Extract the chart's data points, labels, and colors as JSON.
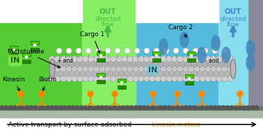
{
  "bg_color": "#ffffff",
  "green_main_color": "#55cc33",
  "green_outlet_color": "#88ee66",
  "blue_main_color": "#55bbdd",
  "blue_outlet_color": "#88ddee",
  "gray_wall_color": "#888899",
  "bottom_surface_color": "#99aa99",
  "bottom_dark_color": "#555555",
  "text_bottom_normal": "Active transport by surface adsorbed ",
  "text_bottom_orange": "kinesin motors",
  "text_orange_color": "#ff8800",
  "text_bottom_color": "#111111",
  "label_cargo1": "Cargo 1",
  "label_cargo2": "Cargo 2",
  "label_microtubule": "Microtubule",
  "label_kinesin": "Kinesin",
  "label_biotin": "Biotin",
  "label_in1": "IN",
  "label_in2": "IN",
  "label_out1": "OUT",
  "label_out2": "OUT",
  "label_directed": "directed\nflow",
  "label_plus_end": "+ end",
  "label_minus_end": "- end",
  "kinesin_color": "#ff8800",
  "cargo_green_dark": "#228800",
  "cargo_green_light": "#44cc00",
  "cargo_blue_color": "#4488bb",
  "mt_light": "#cccccc",
  "mt_dark": "#aaaaaa",
  "mt_edge": "#888888",
  "white_circle": "#ffffff",
  "out1_text_color": "#44bb44",
  "out2_text_color": "#4488cc"
}
